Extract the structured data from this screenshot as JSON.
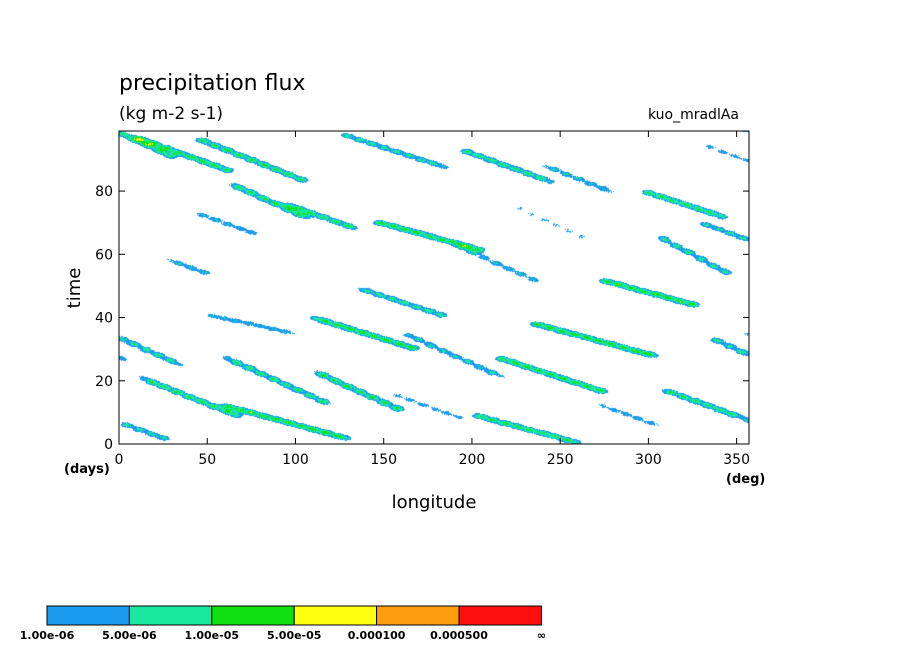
{
  "chart_data": {
    "type": "heatmap",
    "title": "precipitation flux",
    "subtitle": "(kg m-2 s-1)",
    "run_label": "kuo_mradlAa",
    "xlabel": "longitude",
    "ylabel": "time",
    "x_unit": "(deg)",
    "y_unit": "(days)",
    "xlim": [
      0,
      357
    ],
    "ylim": [
      0,
      99
    ],
    "x_ticks": [
      0,
      50,
      100,
      150,
      200,
      250,
      300,
      350
    ],
    "y_ticks": [
      0,
      20,
      40,
      60,
      80
    ],
    "grid": false,
    "legend": "bottom-left",
    "colorbar": {
      "colors": [
        "#1a9bf0",
        "#1ae8a0",
        "#10e010",
        "#ffff10",
        "#ff9f10",
        "#ff1010"
      ],
      "boundaries": [
        "1.00e-06",
        "5.00e-06",
        "1.00e-05",
        "5.00e-05",
        "0.000100",
        "0.000500",
        "∞"
      ]
    },
    "band_widths": [
      3.2,
      2.2,
      1.45,
      0.95,
      0.55,
      0.28
    ],
    "systems": [
      {
        "lon": 10,
        "t": 96,
        "len": 40,
        "slope": -0.25,
        "amp": 0.9
      },
      {
        "lon": 35,
        "t": 92,
        "len": 55,
        "slope": -0.2,
        "amp": 1.0
      },
      {
        "lon": 75,
        "t": 90,
        "len": 60,
        "slope": -0.22,
        "amp": 0.95
      },
      {
        "lon": 85,
        "t": 77,
        "len": 45,
        "slope": -0.25,
        "amp": 1.0
      },
      {
        "lon": 115,
        "t": 72,
        "len": 40,
        "slope": -0.2,
        "amp": 0.9
      },
      {
        "lon": 40,
        "t": 56,
        "len": 25,
        "slope": -0.2,
        "amp": 0.6
      },
      {
        "lon": 155,
        "t": 93,
        "len": 60,
        "slope": -0.18,
        "amp": 0.7
      },
      {
        "lon": 220,
        "t": 88,
        "len": 50,
        "slope": -0.2,
        "amp": 0.85
      },
      {
        "lon": 260,
        "t": 84,
        "len": 40,
        "slope": -0.22,
        "amp": 0.6
      },
      {
        "lon": 320,
        "t": 76,
        "len": 45,
        "slope": -0.18,
        "amp": 0.9
      },
      {
        "lon": 345,
        "t": 67,
        "len": 30,
        "slope": -0.2,
        "amp": 0.7
      },
      {
        "lon": 175,
        "t": 66,
        "len": 60,
        "slope": -0.15,
        "amp": 0.95
      },
      {
        "lon": 215,
        "t": 57,
        "len": 45,
        "slope": -0.25,
        "amp": 0.6
      },
      {
        "lon": 160,
        "t": 45,
        "len": 50,
        "slope": -0.18,
        "amp": 0.75
      },
      {
        "lon": 300,
        "t": 48,
        "len": 55,
        "slope": -0.15,
        "amp": 1.0
      },
      {
        "lon": 325,
        "t": 60,
        "len": 40,
        "slope": -0.3,
        "amp": 0.85
      },
      {
        "lon": 270,
        "t": 33,
        "len": 70,
        "slope": -0.15,
        "amp": 1.0
      },
      {
        "lon": 245,
        "t": 22,
        "len": 60,
        "slope": -0.18,
        "amp": 1.0
      },
      {
        "lon": 140,
        "t": 35,
        "len": 60,
        "slope": -0.17,
        "amp": 1.0
      },
      {
        "lon": 135,
        "t": 17,
        "len": 50,
        "slope": -0.25,
        "amp": 1.0
      },
      {
        "lon": 40,
        "t": 15,
        "len": 55,
        "slope": -0.22,
        "amp": 0.95
      },
      {
        "lon": 90,
        "t": 20,
        "len": 60,
        "slope": -0.25,
        "amp": 0.9
      },
      {
        "lon": 95,
        "t": 7,
        "len": 70,
        "slope": -0.15,
        "amp": 1.0
      },
      {
        "lon": 15,
        "t": 30,
        "len": 40,
        "slope": -0.25,
        "amp": 0.8
      },
      {
        "lon": 75,
        "t": 38,
        "len": 50,
        "slope": -0.12,
        "amp": 0.5
      },
      {
        "lon": 190,
        "t": 28,
        "len": 55,
        "slope": -0.25,
        "amp": 0.7
      },
      {
        "lon": 230,
        "t": 5,
        "len": 60,
        "slope": -0.15,
        "amp": 0.9
      },
      {
        "lon": 330,
        "t": 13,
        "len": 45,
        "slope": -0.2,
        "amp": 0.9
      },
      {
        "lon": 350,
        "t": 30,
        "len": 30,
        "slope": -0.25,
        "amp": 0.8
      },
      {
        "lon": 290,
        "t": 9,
        "len": 35,
        "slope": -0.2,
        "amp": 0.5
      },
      {
        "lon": 175,
        "t": 12,
        "len": 40,
        "slope": -0.2,
        "amp": 0.45
      },
      {
        "lon": 60,
        "t": 70,
        "len": 35,
        "slope": -0.2,
        "amp": 0.55
      },
      {
        "lon": 245,
        "t": 70,
        "len": 40,
        "slope": -0.25,
        "amp": 0.4
      },
      {
        "lon": 10,
        "t": 5,
        "len": 35,
        "slope": -0.2,
        "amp": 0.7
      },
      {
        "lon": 345,
        "t": 92,
        "len": 25,
        "slope": -0.2,
        "amp": 0.45
      }
    ]
  }
}
